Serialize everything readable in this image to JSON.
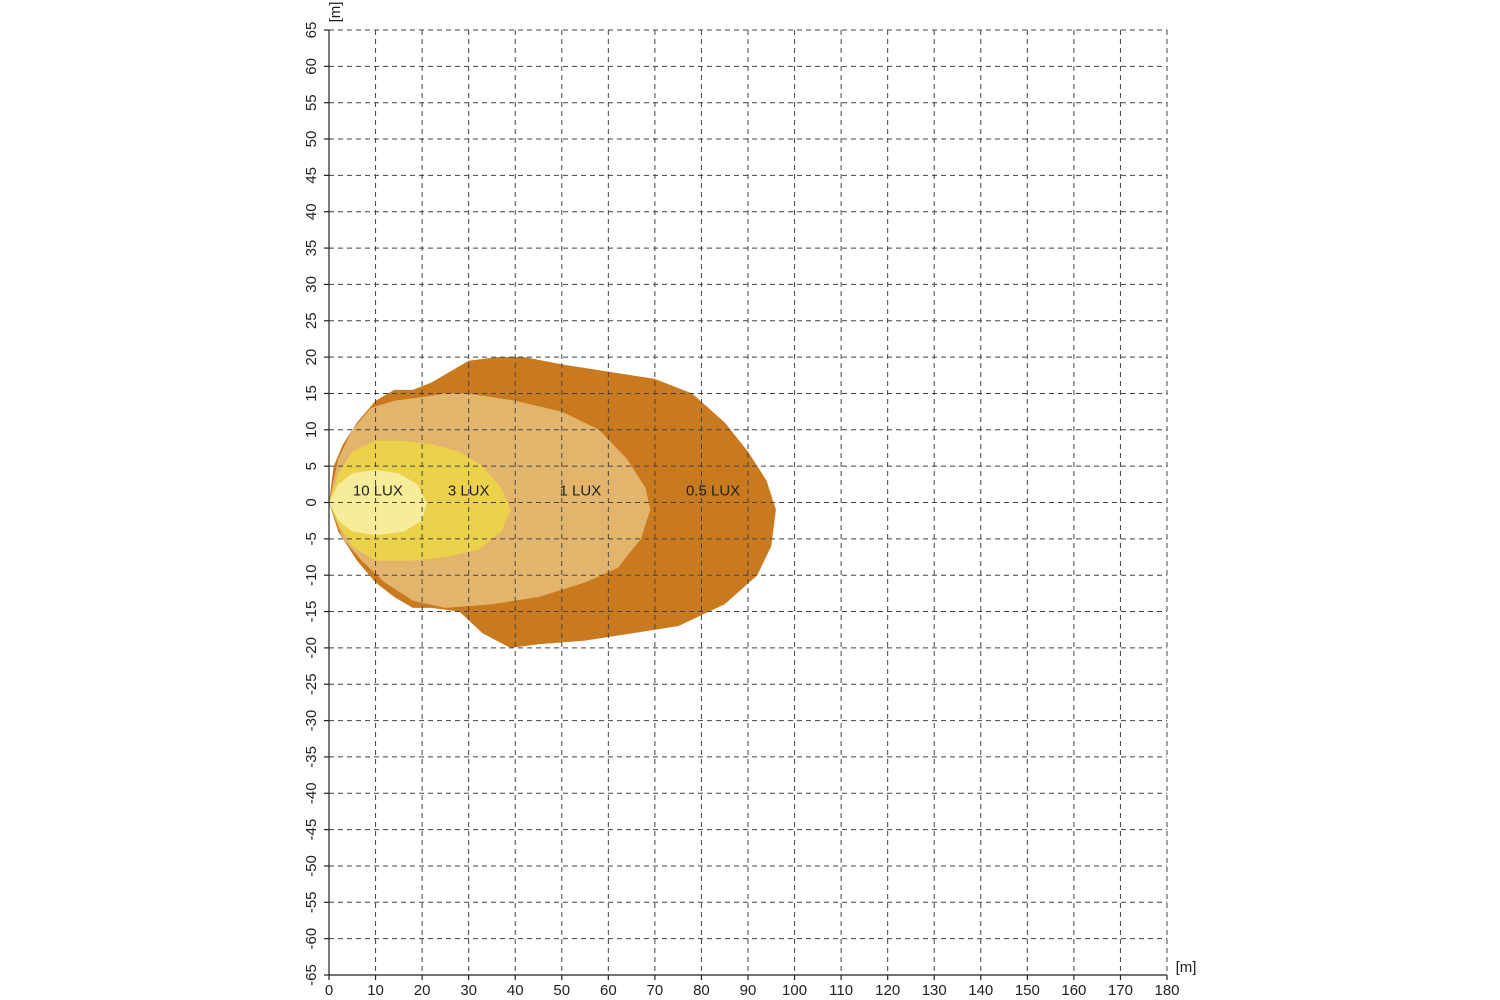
{
  "chart_data": {
    "type": "area",
    "xlabel": "[m]",
    "ylabel": "[m]",
    "xlim": [
      0,
      180
    ],
    "xticks": [
      0,
      10,
      20,
      30,
      40,
      50,
      60,
      70,
      80,
      90,
      100,
      110,
      120,
      130,
      140,
      150,
      160,
      170,
      180
    ],
    "ylim": [
      -65,
      65
    ],
    "yticks": [
      -65,
      -60,
      -55,
      -50,
      -45,
      -40,
      -35,
      -30,
      -25,
      -20,
      -15,
      -10,
      -5,
      0,
      5,
      10,
      15,
      20,
      25,
      30,
      35,
      40,
      45,
      50,
      55,
      60,
      65
    ],
    "grid": true,
    "series": [
      {
        "name": "0.5 LUX",
        "color": "#c97a1e",
        "x": [
          0,
          1,
          3,
          6,
          10,
          14,
          18,
          22,
          26,
          30,
          36,
          42,
          50,
          60,
          70,
          78,
          85,
          90,
          94,
          96,
          95,
          92,
          85,
          75,
          65,
          55,
          45,
          39,
          33,
          28,
          22,
          18,
          14,
          10,
          6,
          2,
          0
        ],
        "values": [
          0,
          5,
          8,
          11,
          14,
          15.5,
          15.5,
          16.5,
          18,
          19.5,
          20,
          20,
          19,
          18,
          17,
          15,
          11,
          7,
          3,
          -1,
          -6,
          -10,
          -14,
          -17,
          -18,
          -19,
          -19.5,
          -20,
          -18,
          -15,
          -14.5,
          -14.5,
          -13,
          -11,
          -8,
          -4,
          0
        ]
      },
      {
        "name": "1 LUX",
        "color": "#e3b46c",
        "x": [
          0,
          2,
          5,
          9,
          14,
          20,
          25,
          30,
          40,
          50,
          58,
          64,
          68,
          69,
          67,
          62,
          55,
          45,
          35,
          25,
          18,
          12,
          7,
          3,
          0
        ],
        "values": [
          0,
          6,
          10,
          13,
          14,
          14.5,
          15,
          15,
          14,
          12.5,
          10,
          6,
          2,
          -1,
          -5,
          -9,
          -11,
          -13,
          -14,
          -14.5,
          -13.5,
          -11,
          -8,
          -5,
          0
        ]
      },
      {
        "name": "3 LUX",
        "color": "#ecd24a",
        "x": [
          0,
          2,
          5,
          10,
          16,
          22,
          28,
          33,
          37,
          39,
          37,
          32,
          25,
          18,
          10,
          5,
          2,
          0
        ],
        "values": [
          0,
          4,
          7,
          8.5,
          8.5,
          8,
          7,
          5,
          2,
          -1,
          -4,
          -6.5,
          -7.5,
          -8,
          -8,
          -6,
          -3,
          0
        ]
      },
      {
        "name": "10 LUX",
        "color": "#f6ec9a",
        "x": [
          0,
          2,
          5,
          10,
          15,
          19,
          21,
          20,
          16,
          10,
          5,
          2,
          0
        ],
        "values": [
          0,
          2.5,
          4,
          4.5,
          4,
          2.5,
          0,
          -2.5,
          -4,
          -4.5,
          -4,
          -2.5,
          0
        ]
      }
    ]
  }
}
